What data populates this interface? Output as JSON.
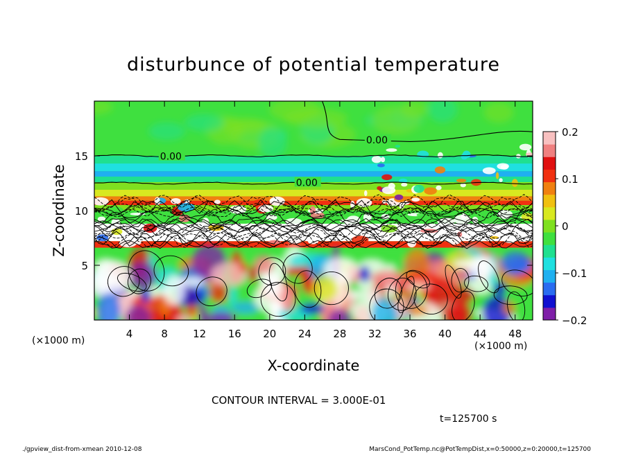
{
  "chart_data": {
    "type": "heatmap",
    "title": "disturbunce of potential temperature",
    "xlabel": "X-coordinate",
    "ylabel": "Z-coordinate",
    "x_unit_left": "(×1000 m)",
    "x_unit_right": "(×1000 m)",
    "xlim": [
      0,
      50
    ],
    "ylim": [
      0,
      20
    ],
    "x_ticks": [
      4,
      8,
      12,
      16,
      20,
      24,
      28,
      32,
      36,
      40,
      44,
      48
    ],
    "y_ticks": [
      5,
      10,
      15
    ],
    "colorbar": {
      "range": [
        -0.2,
        0.2
      ],
      "ticks": [
        {
          "value": 0.2,
          "label": "0.2"
        },
        {
          "value": 0.1,
          "label": "0.1"
        },
        {
          "value": 0.0,
          "label": "0"
        },
        {
          "value": -0.1,
          "label": "−0.1"
        },
        {
          "value": -0.2,
          "label": "−0.2"
        }
      ],
      "colors": [
        "#7f1fa8",
        "#1010d0",
        "#2a6cf0",
        "#1fb0f0",
        "#1fe0e0",
        "#1fe090",
        "#3fe03f",
        "#7fe020",
        "#d8e820",
        "#f0c010",
        "#f08010",
        "#f03010",
        "#e01010",
        "#f08080",
        "#f8c0c0"
      ]
    },
    "contour_labels": [
      {
        "text": "0.00",
        "x": 7.5,
        "z": 14.9
      },
      {
        "text": "0.00",
        "x": 23.0,
        "z": 12.5
      },
      {
        "text": "0.00",
        "x": 31.0,
        "z": 16.4
      }
    ],
    "annotations": {
      "contour_interval": "CONTOUR INTERVAL = 3.000E-01",
      "time": "t=125700 s",
      "footer_left": "./gpview_dist-from-xmean  2010-12-08",
      "footer_right": "MarsCond_PotTemp.nc@PotTempDist,x=0:50000,z=0:20000,t=125700"
    }
  }
}
